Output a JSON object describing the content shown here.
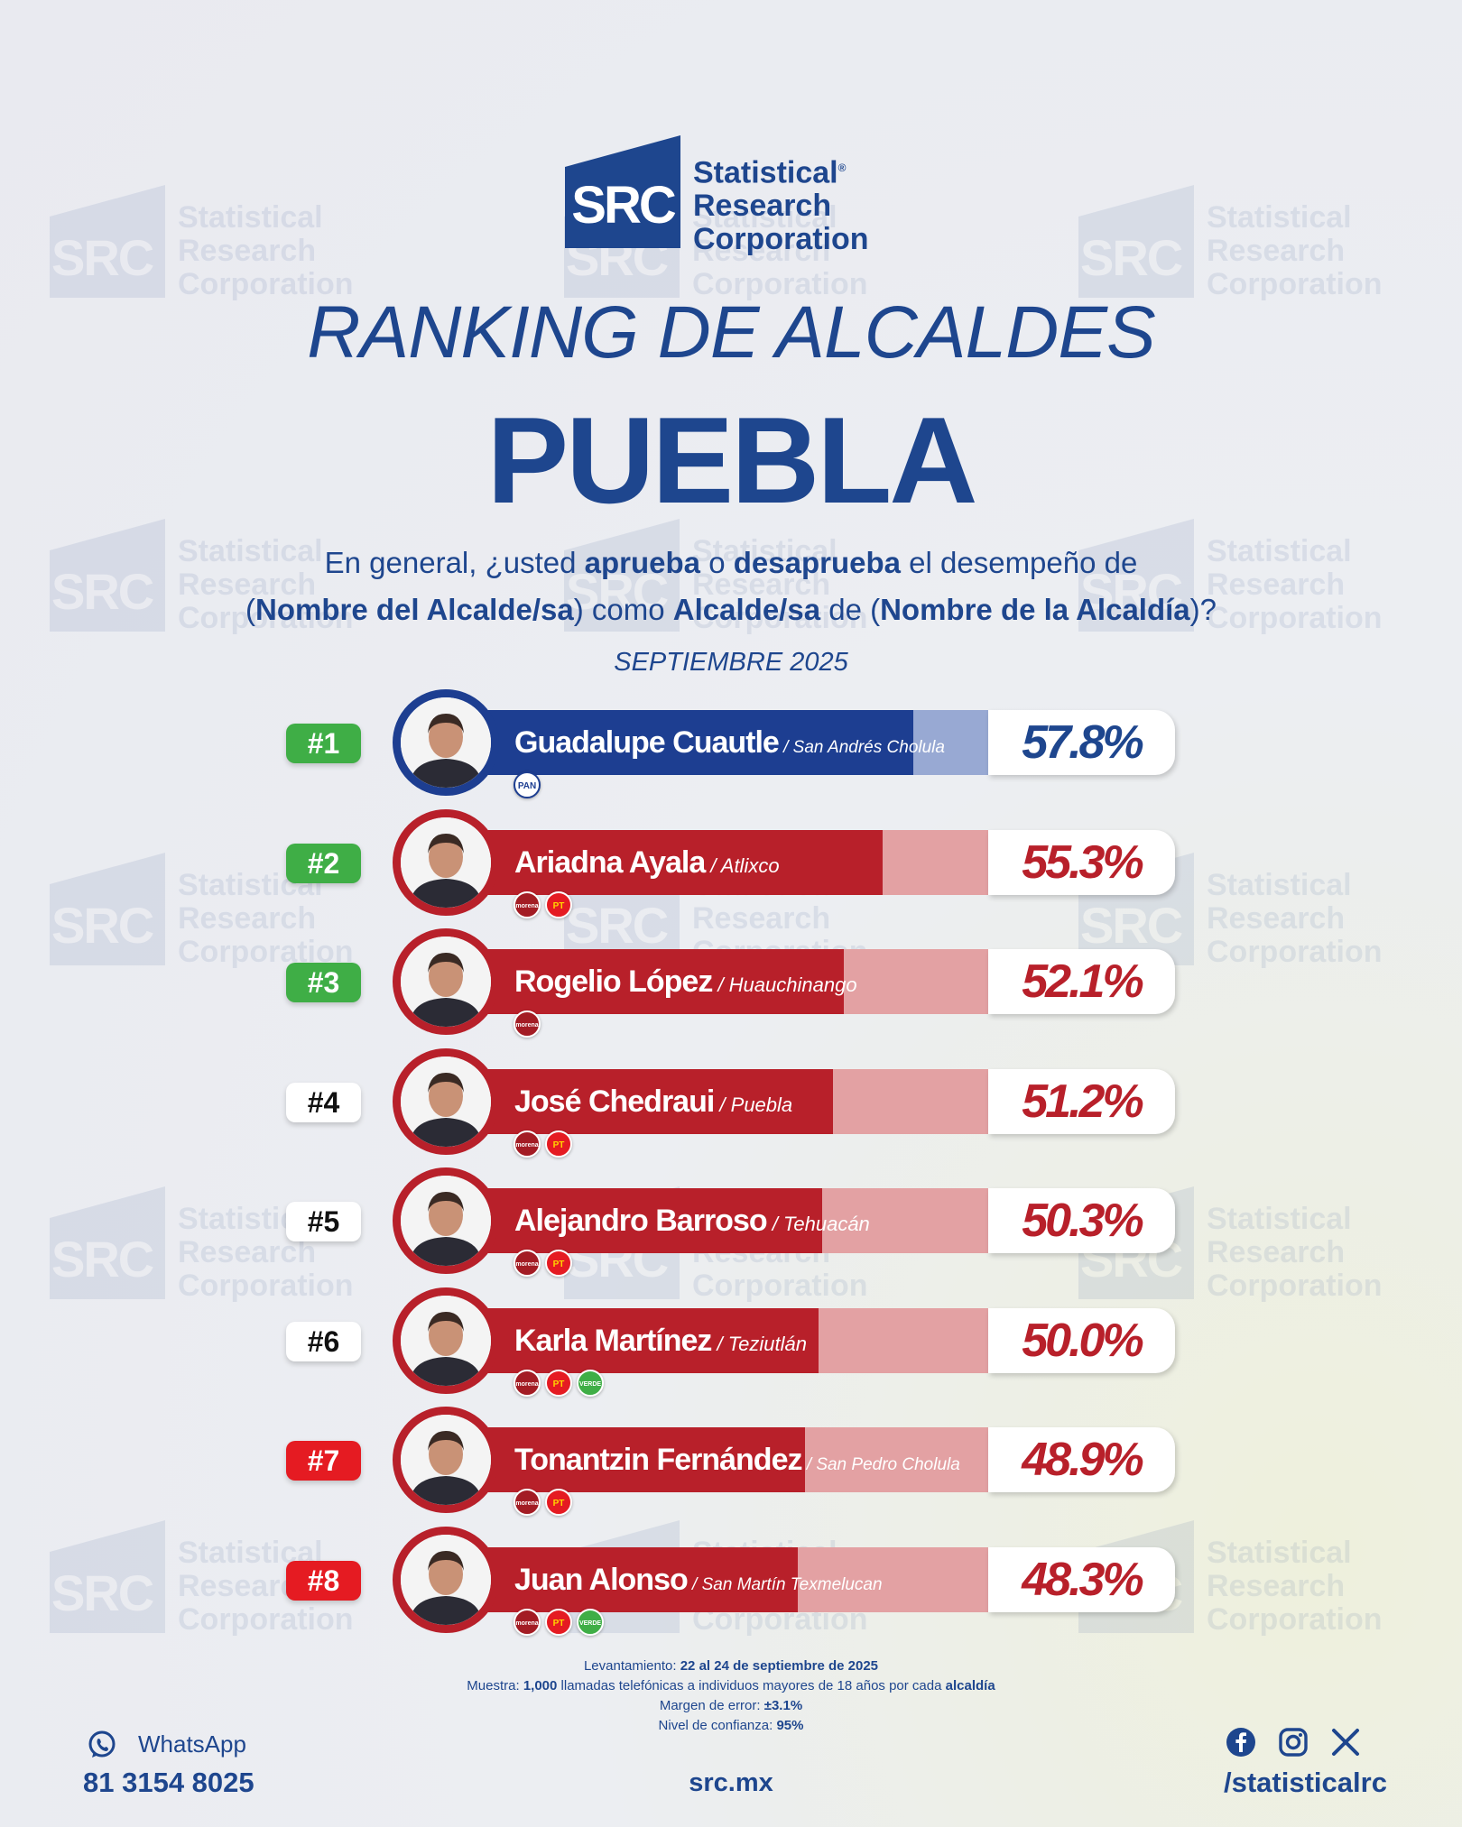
{
  "brand": {
    "mark": "SRC",
    "name_lines": [
      "Statistical",
      "Research",
      "Corporation"
    ],
    "registered": "®"
  },
  "header": {
    "title": "RANKING DE ALCALDES",
    "state": "PUEBLA",
    "question": {
      "p1": "En general, ¿usted ",
      "b1": "aprueba",
      "p2": " o ",
      "b2": "desaprueba",
      "p3": " el desempeño de",
      "p4": "(",
      "b3": "Nombre del Alcalde/sa",
      "p5": ") como ",
      "b4": "Alcalde/sa",
      "p6": " de (",
      "b5": "Nombre de la Alcaldía",
      "p7": ")?"
    },
    "period": "SEPTIEMBRE 2025"
  },
  "colors": {
    "navy": "#1e468e",
    "pan_blue": "#1d3e91",
    "pan_light": "#98a9d3",
    "morena_red": "#b8202a",
    "morena_light": "#e3a1a3",
    "green_rank": "#3fae46",
    "red_rank": "#e51b22"
  },
  "chart_data": {
    "type": "bar",
    "categories": [
      "Guadalupe Cuautle",
      "Ariadna Ayala",
      "Rogelio López",
      "José Chedraui",
      "Alejandro Barroso",
      "Karla Martínez",
      "Tonantzin Fernández",
      "Juan Alonso"
    ],
    "values": [
      57.8,
      55.3,
      52.1,
      51.2,
      50.3,
      50.0,
      48.9,
      48.3
    ],
    "unit": "%",
    "rows": [
      {
        "rank": "#1",
        "name": "Guadalupe Cuautle",
        "municipality": "San Andrés Cholula",
        "value": 57.8,
        "label": "57.8%",
        "parties": [
          "PAN"
        ],
        "rank_style": "green",
        "theme": "blue"
      },
      {
        "rank": "#2",
        "name": "Ariadna Ayala",
        "municipality": "Atlixco",
        "value": 55.3,
        "label": "55.3%",
        "parties": [
          "morena",
          "PT"
        ],
        "rank_style": "green",
        "theme": "red"
      },
      {
        "rank": "#3",
        "name": "Rogelio López",
        "municipality": "Huauchinango",
        "value": 52.1,
        "label": "52.1%",
        "parties": [
          "morena"
        ],
        "rank_style": "green",
        "theme": "red"
      },
      {
        "rank": "#4",
        "name": "José Chedraui",
        "municipality": "Puebla",
        "value": 51.2,
        "label": "51.2%",
        "parties": [
          "morena",
          "PT"
        ],
        "rank_style": "white",
        "theme": "red"
      },
      {
        "rank": "#5",
        "name": "Alejandro Barroso",
        "municipality": "Tehuacán",
        "value": 50.3,
        "label": "50.3%",
        "parties": [
          "morena",
          "PT"
        ],
        "rank_style": "white",
        "theme": "red"
      },
      {
        "rank": "#6",
        "name": "Karla Martínez",
        "municipality": "Teziutlán",
        "value": 50.0,
        "label": "50.0%",
        "parties": [
          "morena",
          "PT",
          "VERDE"
        ],
        "rank_style": "white",
        "theme": "red"
      },
      {
        "rank": "#7",
        "name": "Tonantzin Fernández",
        "municipality": "San Pedro Cholula",
        "value": 48.9,
        "label": "48.9%",
        "parties": [
          "morena",
          "PT"
        ],
        "rank_style": "red",
        "theme": "red"
      },
      {
        "rank": "#8",
        "name": "Juan Alonso",
        "municipality": "San Martín Texmelucan",
        "value": 48.3,
        "label": "48.3%",
        "parties": [
          "morena",
          "PT",
          "VERDE"
        ],
        "rank_style": "red",
        "theme": "red"
      }
    ]
  },
  "methodology": {
    "l1_label": "Levantamiento: ",
    "l1_value": "22 al 24 de septiembre de 2025",
    "l2_label": "Muestra: ",
    "l2_value": "1,000",
    "l2_mid": " llamadas telefónicas a individuos mayores de 18 años por cada ",
    "l2_end": "alcaldía",
    "l3_label": "Margen de error: ",
    "l3_value": "±3.1%",
    "l4_label": "Nivel de confianza: ",
    "l4_value": "95%"
  },
  "footer": {
    "whatsapp_label": "WhatsApp",
    "phone": "81 3154 8025",
    "website": "src.mx",
    "social_handle": "/statisticalrc",
    "social_icons": [
      "facebook-icon",
      "instagram-icon",
      "x-icon"
    ]
  }
}
